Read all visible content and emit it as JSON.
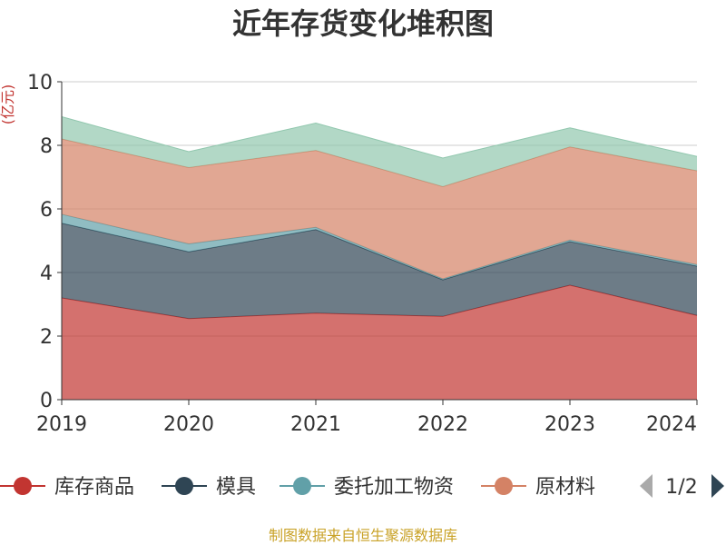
{
  "footer": "制图数据来自恒生聚源数据库",
  "legend_pager": "1/2",
  "chart_data": {
    "type": "area",
    "stacked": true,
    "title": "近年存货变化堆积图",
    "ylabel": "(亿元)",
    "xlabel": "",
    "x": [
      "2019",
      "2020",
      "2021",
      "2022",
      "2023",
      "2024"
    ],
    "ylim": [
      0,
      10
    ],
    "yticks": [
      0,
      2,
      4,
      6,
      8,
      10
    ],
    "grid": true,
    "legend_position": "bottom",
    "series": [
      {
        "name": "库存商品",
        "color": "#c23531",
        "values": [
          3.2,
          2.55,
          2.72,
          2.62,
          3.6,
          2.65
        ]
      },
      {
        "name": "模具",
        "color": "#2f4554",
        "values": [
          2.35,
          2.1,
          2.63,
          1.15,
          1.37,
          1.55
        ]
      },
      {
        "name": "委托加工物资",
        "color": "#61a0a8",
        "values": [
          0.28,
          0.25,
          0.07,
          0.03,
          0.05,
          0.05
        ]
      },
      {
        "name": "原材料",
        "color": "#d48265",
        "values": [
          2.37,
          2.4,
          2.42,
          2.9,
          2.93,
          2.95
        ]
      },
      {
        "name": "",
        "color": "#91c7ae",
        "values": [
          0.7,
          0.5,
          0.86,
          0.9,
          0.6,
          0.45
        ]
      }
    ]
  }
}
